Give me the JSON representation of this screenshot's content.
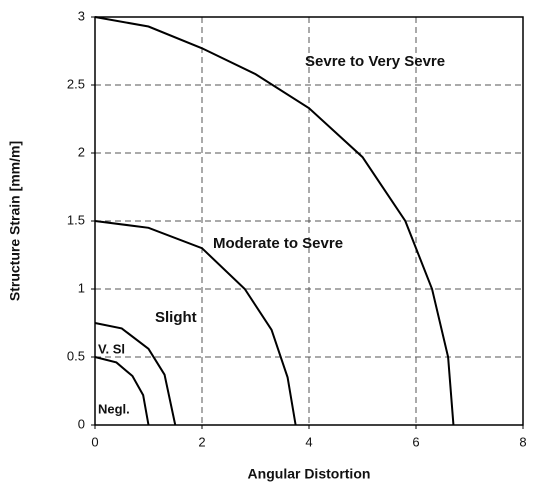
{
  "chart_data": {
    "type": "line",
    "xlabel": "Angular Distortion",
    "ylabel": "Structure Strain [mm/m]",
    "xlim": [
      0,
      8
    ],
    "xticks": [
      0,
      2,
      4,
      6,
      8
    ],
    "ylim": [
      0,
      3
    ],
    "yticks": [
      0,
      0.5,
      1,
      1.5,
      2,
      2.5,
      3
    ],
    "grid": true,
    "color": "#000000",
    "lines": [
      {
        "x": [
          0,
          1,
          2,
          3,
          4,
          5,
          5.8,
          6.3,
          6.6,
          6.7
        ],
        "values": [
          3,
          2.93,
          2.77,
          2.58,
          2.33,
          1.97,
          1.5,
          1.0,
          0.5,
          0
        ]
      },
      {
        "x": [
          0,
          1,
          2,
          2.8,
          3.3,
          3.6,
          3.75
        ],
        "values": [
          1.5,
          1.45,
          1.3,
          1.0,
          0.7,
          0.35,
          0
        ]
      },
      {
        "x": [
          0,
          0.5,
          1,
          1.3,
          1.5
        ],
        "values": [
          0.75,
          0.71,
          0.56,
          0.37,
          0
        ]
      },
      {
        "x": [
          0,
          0.4,
          0.7,
          0.9,
          1.0
        ],
        "values": [
          0.5,
          0.46,
          0.36,
          0.22,
          0
        ]
      }
    ],
    "annotations": [
      "Sevre to Very Sevre",
      "Moderate to Sevre",
      "Slight",
      "V. Sl",
      "Negl."
    ]
  }
}
